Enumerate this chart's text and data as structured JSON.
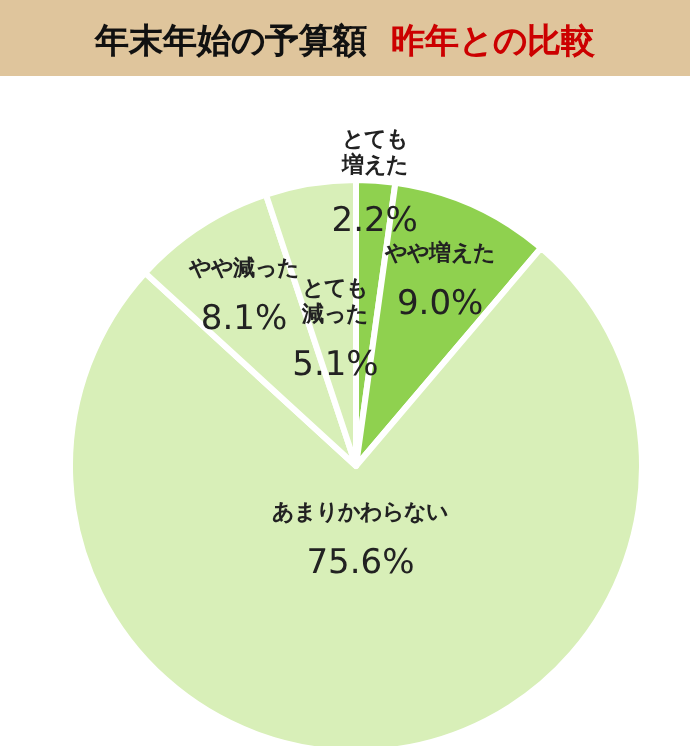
{
  "chart_data": {
    "type": "pie",
    "title": "年末年始の予算額",
    "subtitle": "昨年との比較",
    "categories": [
      "とても増えた",
      "やや増えた",
      "あまりかわらない",
      "やや減った",
      "とても減った"
    ],
    "value_labels": [
      "2.2%",
      "9.0%",
      "75.6%",
      "8.1%",
      "5.1%"
    ],
    "values": [
      2.2,
      9.0,
      75.6,
      8.1,
      5.1
    ],
    "colors": [
      "#8fd14f",
      "#8fd14f",
      "#d8efb8",
      "#d8efb8",
      "#d8efb8"
    ]
  }
}
